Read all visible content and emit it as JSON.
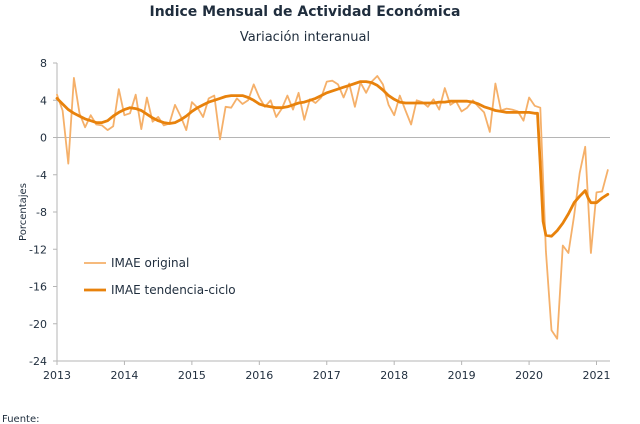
{
  "chart_data": {
    "type": "line",
    "title": "Indice Mensual de  Actividad Económica",
    "subtitle": "Variación interanual",
    "ylabel": "Porcentajes",
    "ylim": [
      -24,
      8
    ],
    "yticks": [
      8,
      4,
      0,
      -4,
      -8,
      -12,
      -16,
      -20,
      -24
    ],
    "xlim": [
      2013,
      2021.2
    ],
    "xticks": [
      "2013",
      "2014",
      "2015",
      "2016",
      "2017",
      "2018",
      "2019",
      "2020",
      "2021"
    ],
    "grid": false,
    "legend_position": "bottom-left",
    "source_text": "Fuente:",
    "series": [
      {
        "name": "IMAE original",
        "color": "#f5b06a",
        "points": [
          [
            2013.0,
            4.6
          ],
          [
            2013.083,
            2.9
          ],
          [
            2013.167,
            -2.8
          ],
          [
            2013.25,
            6.4
          ],
          [
            2013.333,
            2.6
          ],
          [
            2013.417,
            1.1
          ],
          [
            2013.5,
            2.4
          ],
          [
            2013.583,
            1.4
          ],
          [
            2013.667,
            1.3
          ],
          [
            2013.75,
            0.8
          ],
          [
            2013.833,
            1.2
          ],
          [
            2013.917,
            5.2
          ],
          [
            2014.0,
            2.4
          ],
          [
            2014.083,
            2.6
          ],
          [
            2014.167,
            4.6
          ],
          [
            2014.25,
            0.9
          ],
          [
            2014.333,
            4.3
          ],
          [
            2014.417,
            1.7
          ],
          [
            2014.5,
            2.2
          ],
          [
            2014.583,
            1.3
          ],
          [
            2014.667,
            1.5
          ],
          [
            2014.75,
            3.5
          ],
          [
            2014.833,
            2.3
          ],
          [
            2014.917,
            0.8
          ],
          [
            2015.0,
            3.8
          ],
          [
            2015.083,
            3.2
          ],
          [
            2015.167,
            2.2
          ],
          [
            2015.25,
            4.2
          ],
          [
            2015.333,
            4.5
          ],
          [
            2015.417,
            -0.2
          ],
          [
            2015.5,
            3.3
          ],
          [
            2015.583,
            3.2
          ],
          [
            2015.667,
            4.2
          ],
          [
            2015.75,
            3.6
          ],
          [
            2015.833,
            4.0
          ],
          [
            2015.917,
            5.7
          ],
          [
            2016.0,
            4.3
          ],
          [
            2016.083,
            3.3
          ],
          [
            2016.167,
            4.0
          ],
          [
            2016.25,
            2.2
          ],
          [
            2016.333,
            3.1
          ],
          [
            2016.417,
            4.5
          ],
          [
            2016.5,
            3.0
          ],
          [
            2016.583,
            4.8
          ],
          [
            2016.667,
            1.9
          ],
          [
            2016.75,
            4.1
          ],
          [
            2016.833,
            3.7
          ],
          [
            2016.917,
            4.3
          ],
          [
            2017.0,
            6.0
          ],
          [
            2017.083,
            6.1
          ],
          [
            2017.167,
            5.7
          ],
          [
            2017.25,
            4.3
          ],
          [
            2017.333,
            5.8
          ],
          [
            2017.417,
            3.3
          ],
          [
            2017.5,
            5.9
          ],
          [
            2017.583,
            4.8
          ],
          [
            2017.667,
            6.0
          ],
          [
            2017.75,
            6.6
          ],
          [
            2017.833,
            5.7
          ],
          [
            2017.917,
            3.5
          ],
          [
            2018.0,
            2.4
          ],
          [
            2018.083,
            4.5
          ],
          [
            2018.167,
            2.9
          ],
          [
            2018.25,
            1.4
          ],
          [
            2018.333,
            4.0
          ],
          [
            2018.417,
            3.8
          ],
          [
            2018.5,
            3.3
          ],
          [
            2018.583,
            4.1
          ],
          [
            2018.667,
            3.0
          ],
          [
            2018.75,
            5.3
          ],
          [
            2018.833,
            3.5
          ],
          [
            2018.917,
            3.9
          ],
          [
            2019.0,
            2.8
          ],
          [
            2019.083,
            3.2
          ],
          [
            2019.167,
            4.0
          ],
          [
            2019.25,
            3.3
          ],
          [
            2019.333,
            2.7
          ],
          [
            2019.417,
            0.6
          ],
          [
            2019.5,
            5.8
          ],
          [
            2019.583,
            2.9
          ],
          [
            2019.667,
            3.1
          ],
          [
            2019.75,
            3.0
          ],
          [
            2019.833,
            2.8
          ],
          [
            2019.917,
            1.8
          ],
          [
            2020.0,
            4.3
          ],
          [
            2020.083,
            3.4
          ],
          [
            2020.167,
            3.2
          ],
          [
            2020.25,
            -12.2
          ],
          [
            2020.333,
            -20.7
          ],
          [
            2020.417,
            -21.6
          ],
          [
            2020.5,
            -11.6
          ],
          [
            2020.583,
            -12.4
          ],
          [
            2020.667,
            -8.4
          ],
          [
            2020.75,
            -3.8
          ],
          [
            2020.833,
            -1.0
          ],
          [
            2020.917,
            -12.4
          ],
          [
            2021.0,
            -5.9
          ],
          [
            2021.083,
            -5.8
          ],
          [
            2021.167,
            -3.5
          ]
        ]
      },
      {
        "name": "IMAE tendencia-ciclo",
        "color": "#e8820c",
        "points": [
          [
            2013.0,
            4.2
          ],
          [
            2013.083,
            3.6
          ],
          [
            2013.167,
            3.0
          ],
          [
            2013.25,
            2.6
          ],
          [
            2013.333,
            2.3
          ],
          [
            2013.417,
            2.0
          ],
          [
            2013.5,
            1.8
          ],
          [
            2013.583,
            1.6
          ],
          [
            2013.667,
            1.6
          ],
          [
            2013.75,
            1.8
          ],
          [
            2013.833,
            2.3
          ],
          [
            2013.917,
            2.7
          ],
          [
            2014.0,
            3.0
          ],
          [
            2014.083,
            3.2
          ],
          [
            2014.167,
            3.1
          ],
          [
            2014.25,
            2.9
          ],
          [
            2014.333,
            2.5
          ],
          [
            2014.417,
            2.1
          ],
          [
            2014.5,
            1.8
          ],
          [
            2014.583,
            1.6
          ],
          [
            2014.667,
            1.5
          ],
          [
            2014.75,
            1.6
          ],
          [
            2014.833,
            1.9
          ],
          [
            2014.917,
            2.3
          ],
          [
            2015.0,
            2.8
          ],
          [
            2015.083,
            3.2
          ],
          [
            2015.167,
            3.5
          ],
          [
            2015.25,
            3.8
          ],
          [
            2015.333,
            4.0
          ],
          [
            2015.417,
            4.2
          ],
          [
            2015.5,
            4.4
          ],
          [
            2015.583,
            4.5
          ],
          [
            2015.667,
            4.5
          ],
          [
            2015.75,
            4.5
          ],
          [
            2015.833,
            4.3
          ],
          [
            2015.917,
            4.0
          ],
          [
            2016.0,
            3.6
          ],
          [
            2016.083,
            3.4
          ],
          [
            2016.167,
            3.3
          ],
          [
            2016.25,
            3.2
          ],
          [
            2016.333,
            3.2
          ],
          [
            2016.417,
            3.3
          ],
          [
            2016.5,
            3.5
          ],
          [
            2016.583,
            3.7
          ],
          [
            2016.667,
            3.8
          ],
          [
            2016.75,
            4.0
          ],
          [
            2016.833,
            4.2
          ],
          [
            2016.917,
            4.5
          ],
          [
            2017.0,
            4.8
          ],
          [
            2017.083,
            5.0
          ],
          [
            2017.167,
            5.2
          ],
          [
            2017.25,
            5.4
          ],
          [
            2017.333,
            5.6
          ],
          [
            2017.417,
            5.8
          ],
          [
            2017.5,
            6.0
          ],
          [
            2017.583,
            6.0
          ],
          [
            2017.667,
            5.9
          ],
          [
            2017.75,
            5.6
          ],
          [
            2017.833,
            5.1
          ],
          [
            2017.917,
            4.5
          ],
          [
            2018.0,
            4.1
          ],
          [
            2018.083,
            3.8
          ],
          [
            2018.167,
            3.7
          ],
          [
            2018.25,
            3.7
          ],
          [
            2018.333,
            3.7
          ],
          [
            2018.417,
            3.7
          ],
          [
            2018.5,
            3.7
          ],
          [
            2018.583,
            3.7
          ],
          [
            2018.667,
            3.8
          ],
          [
            2018.75,
            3.8
          ],
          [
            2018.833,
            3.9
          ],
          [
            2018.917,
            3.9
          ],
          [
            2019.0,
            3.9
          ],
          [
            2019.083,
            3.9
          ],
          [
            2019.167,
            3.8
          ],
          [
            2019.25,
            3.6
          ],
          [
            2019.333,
            3.3
          ],
          [
            2019.417,
            3.1
          ],
          [
            2019.5,
            2.9
          ],
          [
            2019.583,
            2.8
          ],
          [
            2019.667,
            2.7
          ],
          [
            2019.75,
            2.7
          ],
          [
            2019.833,
            2.7
          ],
          [
            2019.917,
            2.7
          ],
          [
            2020.0,
            2.7
          ],
          [
            2020.083,
            2.6
          ],
          [
            2020.125,
            2.6
          ],
          [
            2020.167,
            -3.0
          ],
          [
            2020.208,
            -9.0
          ],
          [
            2020.25,
            -10.5
          ],
          [
            2020.333,
            -10.6
          ],
          [
            2020.417,
            -10.0
          ],
          [
            2020.5,
            -9.2
          ],
          [
            2020.583,
            -8.2
          ],
          [
            2020.667,
            -7.0
          ],
          [
            2020.75,
            -6.3
          ],
          [
            2020.833,
            -5.7
          ],
          [
            2020.875,
            -6.5
          ],
          [
            2020.917,
            -7.0
          ],
          [
            2021.0,
            -7.0
          ],
          [
            2021.083,
            -6.5
          ],
          [
            2021.167,
            -6.1
          ]
        ]
      }
    ]
  }
}
